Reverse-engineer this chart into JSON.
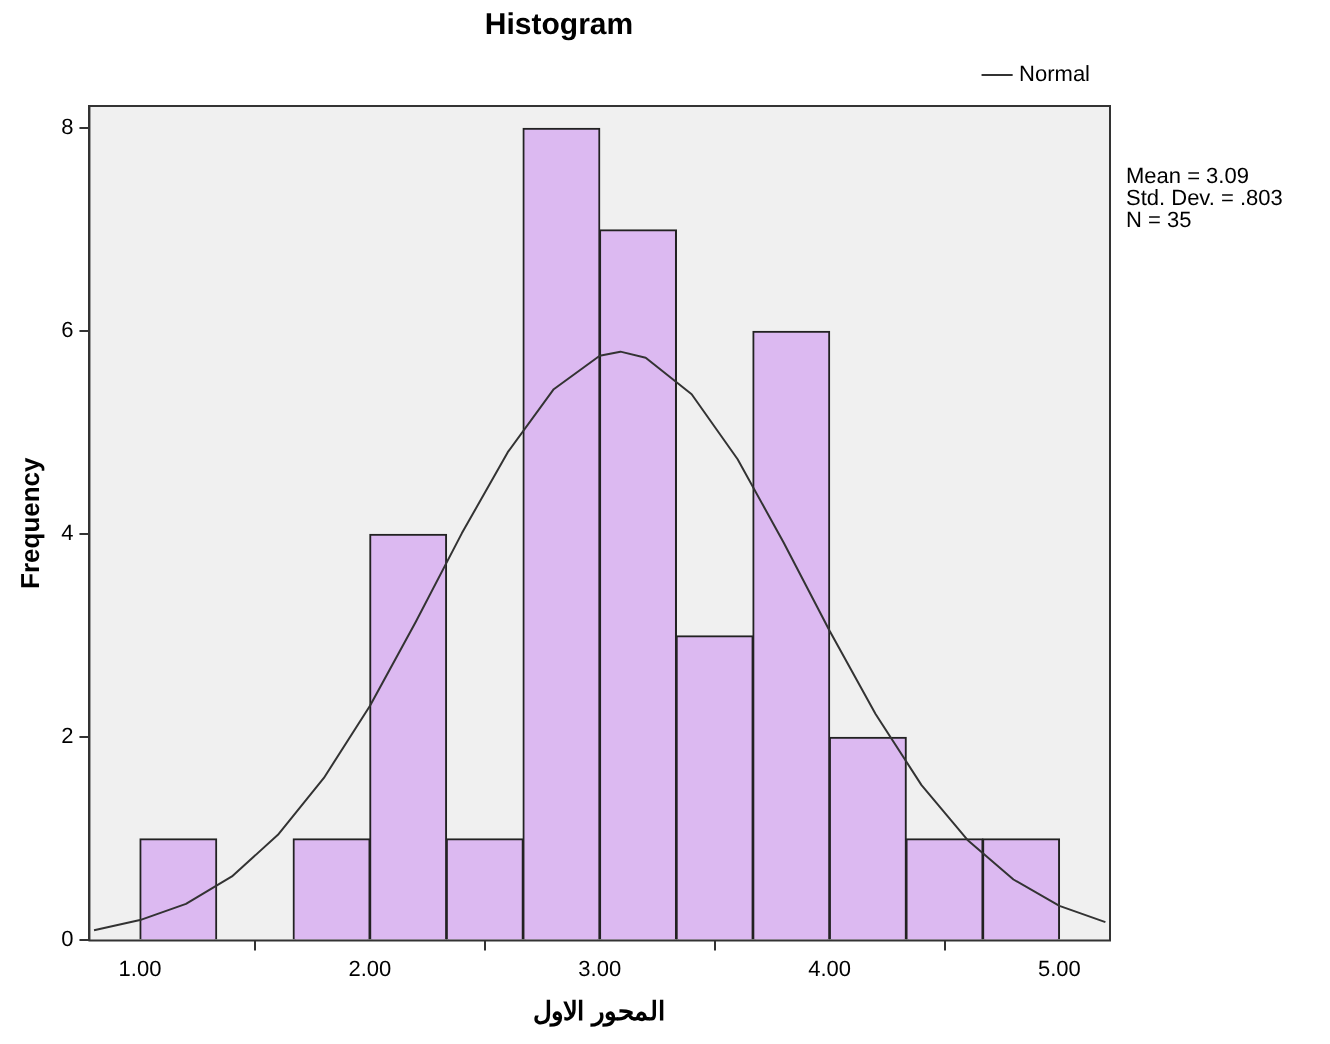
{
  "chart_data": {
    "type": "histogram",
    "title": "Histogram",
    "xlabel": "المحور الاول",
    "ylabel": "Frequency",
    "bins": [
      1.0,
      1.3333,
      1.6667,
      2.0,
      2.3333,
      2.6667,
      3.0,
      3.3333,
      3.6667,
      4.0,
      4.3333,
      4.6667,
      5.0
    ],
    "values": [
      1,
      0,
      1,
      4,
      1,
      8,
      7,
      3,
      6,
      2,
      1,
      1
    ],
    "color": "#dcb9f1",
    "series": [
      {
        "type": "line",
        "name": "Normal",
        "color": "#333333",
        "x": [
          0.8,
          1.0,
          1.2,
          1.4,
          1.6,
          1.8,
          2.0,
          2.2,
          2.4,
          2.6,
          2.8,
          3.0,
          3.09,
          3.2,
          3.4,
          3.6,
          3.8,
          4.0,
          4.2,
          4.4,
          4.6,
          4.8,
          5.0,
          5.2
        ],
        "values": [
          0.1,
          0.2,
          0.36,
          0.63,
          1.04,
          1.6,
          2.31,
          3.14,
          4.01,
          4.81,
          5.43,
          5.76,
          5.8,
          5.74,
          5.38,
          4.74,
          3.92,
          3.05,
          2.23,
          1.53,
          0.99,
          0.6,
          0.34,
          0.18
        ]
      }
    ],
    "xlim": [
      0.78,
      5.22
    ],
    "xticks": [
      {
        "value": 1,
        "label": "1.00"
      },
      {
        "value": 2,
        "label": "2.00"
      },
      {
        "value": 3,
        "label": "3.00"
      },
      {
        "value": 4,
        "label": "4.00"
      },
      {
        "value": 5,
        "label": "5.00"
      }
    ],
    "ylim": [
      0,
      8.22
    ],
    "yticks": [
      0,
      2,
      4,
      6,
      8
    ],
    "legend": "top right",
    "marker": "none",
    "line_style": "solid",
    "annotations": [
      "Mean = 3.09",
      "Std. Dev. = .803",
      "N = 35"
    ]
  }
}
